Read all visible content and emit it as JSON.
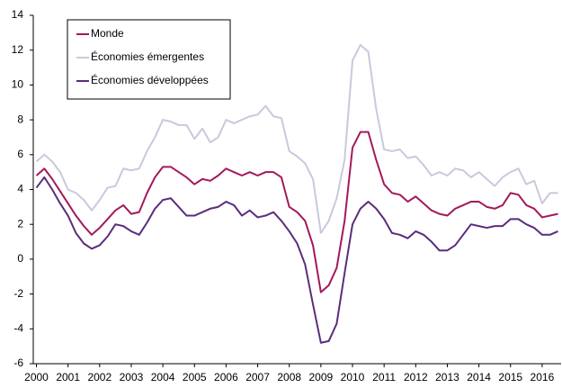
{
  "chart_data": {
    "type": "line",
    "x": [
      2000,
      2000.25,
      2000.5,
      2000.75,
      2001,
      2001.25,
      2001.5,
      2001.75,
      2002,
      2002.25,
      2002.5,
      2002.75,
      2003,
      2003.25,
      2003.5,
      2003.75,
      2004,
      2004.25,
      2004.5,
      2004.75,
      2005,
      2005.25,
      2005.5,
      2005.75,
      2006,
      2006.25,
      2006.5,
      2006.75,
      2007,
      2007.25,
      2007.5,
      2007.75,
      2008,
      2008.25,
      2008.5,
      2008.75,
      2009,
      2009.25,
      2009.5,
      2009.75,
      2010,
      2010.25,
      2010.5,
      2010.75,
      2011,
      2011.25,
      2011.5,
      2011.75,
      2012,
      2012.25,
      2012.5,
      2012.75,
      2013,
      2013.25,
      2013.5,
      2013.75,
      2014,
      2014.25,
      2014.5,
      2014.75,
      2015,
      2015.25,
      2015.5,
      2015.75,
      2016,
      2016.25,
      2016.5
    ],
    "series": [
      {
        "name": "Monde",
        "color": "#a3195b",
        "values": [
          4.8,
          5.2,
          4.6,
          3.9,
          3.2,
          2.5,
          1.9,
          1.4,
          1.8,
          2.3,
          2.8,
          3.1,
          2.6,
          2.7,
          3.8,
          4.7,
          5.3,
          5.3,
          5.0,
          4.7,
          4.3,
          4.6,
          4.5,
          4.8,
          5.2,
          5.0,
          4.8,
          5.0,
          4.8,
          5.0,
          5.0,
          4.7,
          3.0,
          2.7,
          2.2,
          0.8,
          -1.9,
          -1.5,
          -0.5,
          2.2,
          6.4,
          7.3,
          7.3,
          5.7,
          4.3,
          3.8,
          3.7,
          3.3,
          3.6,
          3.2,
          2.8,
          2.6,
          2.5,
          2.9,
          3.1,
          3.3,
          3.3,
          3.0,
          2.9,
          3.1,
          3.8,
          3.7,
          3.1,
          2.9,
          2.4,
          2.5,
          2.6
        ]
      },
      {
        "name": "Économies émergentes",
        "color": "#c9c9de",
        "values": [
          5.6,
          6.0,
          5.6,
          5.0,
          4.0,
          3.8,
          3.4,
          2.8,
          3.4,
          4.1,
          4.2,
          5.2,
          5.1,
          5.2,
          6.2,
          7.0,
          8.0,
          7.9,
          7.7,
          7.7,
          6.9,
          7.5,
          6.7,
          7.0,
          8.0,
          7.8,
          8.0,
          8.2,
          8.3,
          8.8,
          8.2,
          8.1,
          6.2,
          5.9,
          5.5,
          4.6,
          1.5,
          2.2,
          3.5,
          5.7,
          11.4,
          12.3,
          11.9,
          8.6,
          6.3,
          6.2,
          6.3,
          5.8,
          5.9,
          5.4,
          4.8,
          5.0,
          4.8,
          5.2,
          5.1,
          4.7,
          5.0,
          4.6,
          4.2,
          4.7,
          5.0,
          5.2,
          4.3,
          4.5,
          3.2,
          3.8,
          3.8
        ]
      },
      {
        "name": "Économies développées",
        "color": "#5a2d7c",
        "values": [
          4.1,
          4.7,
          4.0,
          3.2,
          2.5,
          1.5,
          0.9,
          0.6,
          0.8,
          1.3,
          2.0,
          1.9,
          1.6,
          1.4,
          2.1,
          2.9,
          3.4,
          3.5,
          3.0,
          2.5,
          2.5,
          2.7,
          2.9,
          3.0,
          3.3,
          3.1,
          2.5,
          2.8,
          2.4,
          2.5,
          2.7,
          2.2,
          1.6,
          0.9,
          -0.3,
          -2.6,
          -4.8,
          -4.7,
          -3.7,
          -0.8,
          2.0,
          2.9,
          3.3,
          2.9,
          2.3,
          1.5,
          1.4,
          1.2,
          1.6,
          1.4,
          1.0,
          0.5,
          0.5,
          0.8,
          1.4,
          2.0,
          1.9,
          1.8,
          1.9,
          1.9,
          2.3,
          2.3,
          2.0,
          1.8,
          1.4,
          1.4,
          1.6
        ]
      }
    ],
    "xlim": [
      1999.9,
      2016.6
    ],
    "xticks": [
      2000,
      2001,
      2002,
      2003,
      2004,
      2005,
      2006,
      2007,
      2008,
      2009,
      2010,
      2011,
      2012,
      2013,
      2014,
      2015,
      2016
    ],
    "ylim": [
      -6,
      14
    ],
    "yticks": [
      -6,
      -4,
      -2,
      0,
      2,
      4,
      6,
      8,
      10,
      12,
      14
    ],
    "grid": false,
    "legend": "upper left"
  }
}
